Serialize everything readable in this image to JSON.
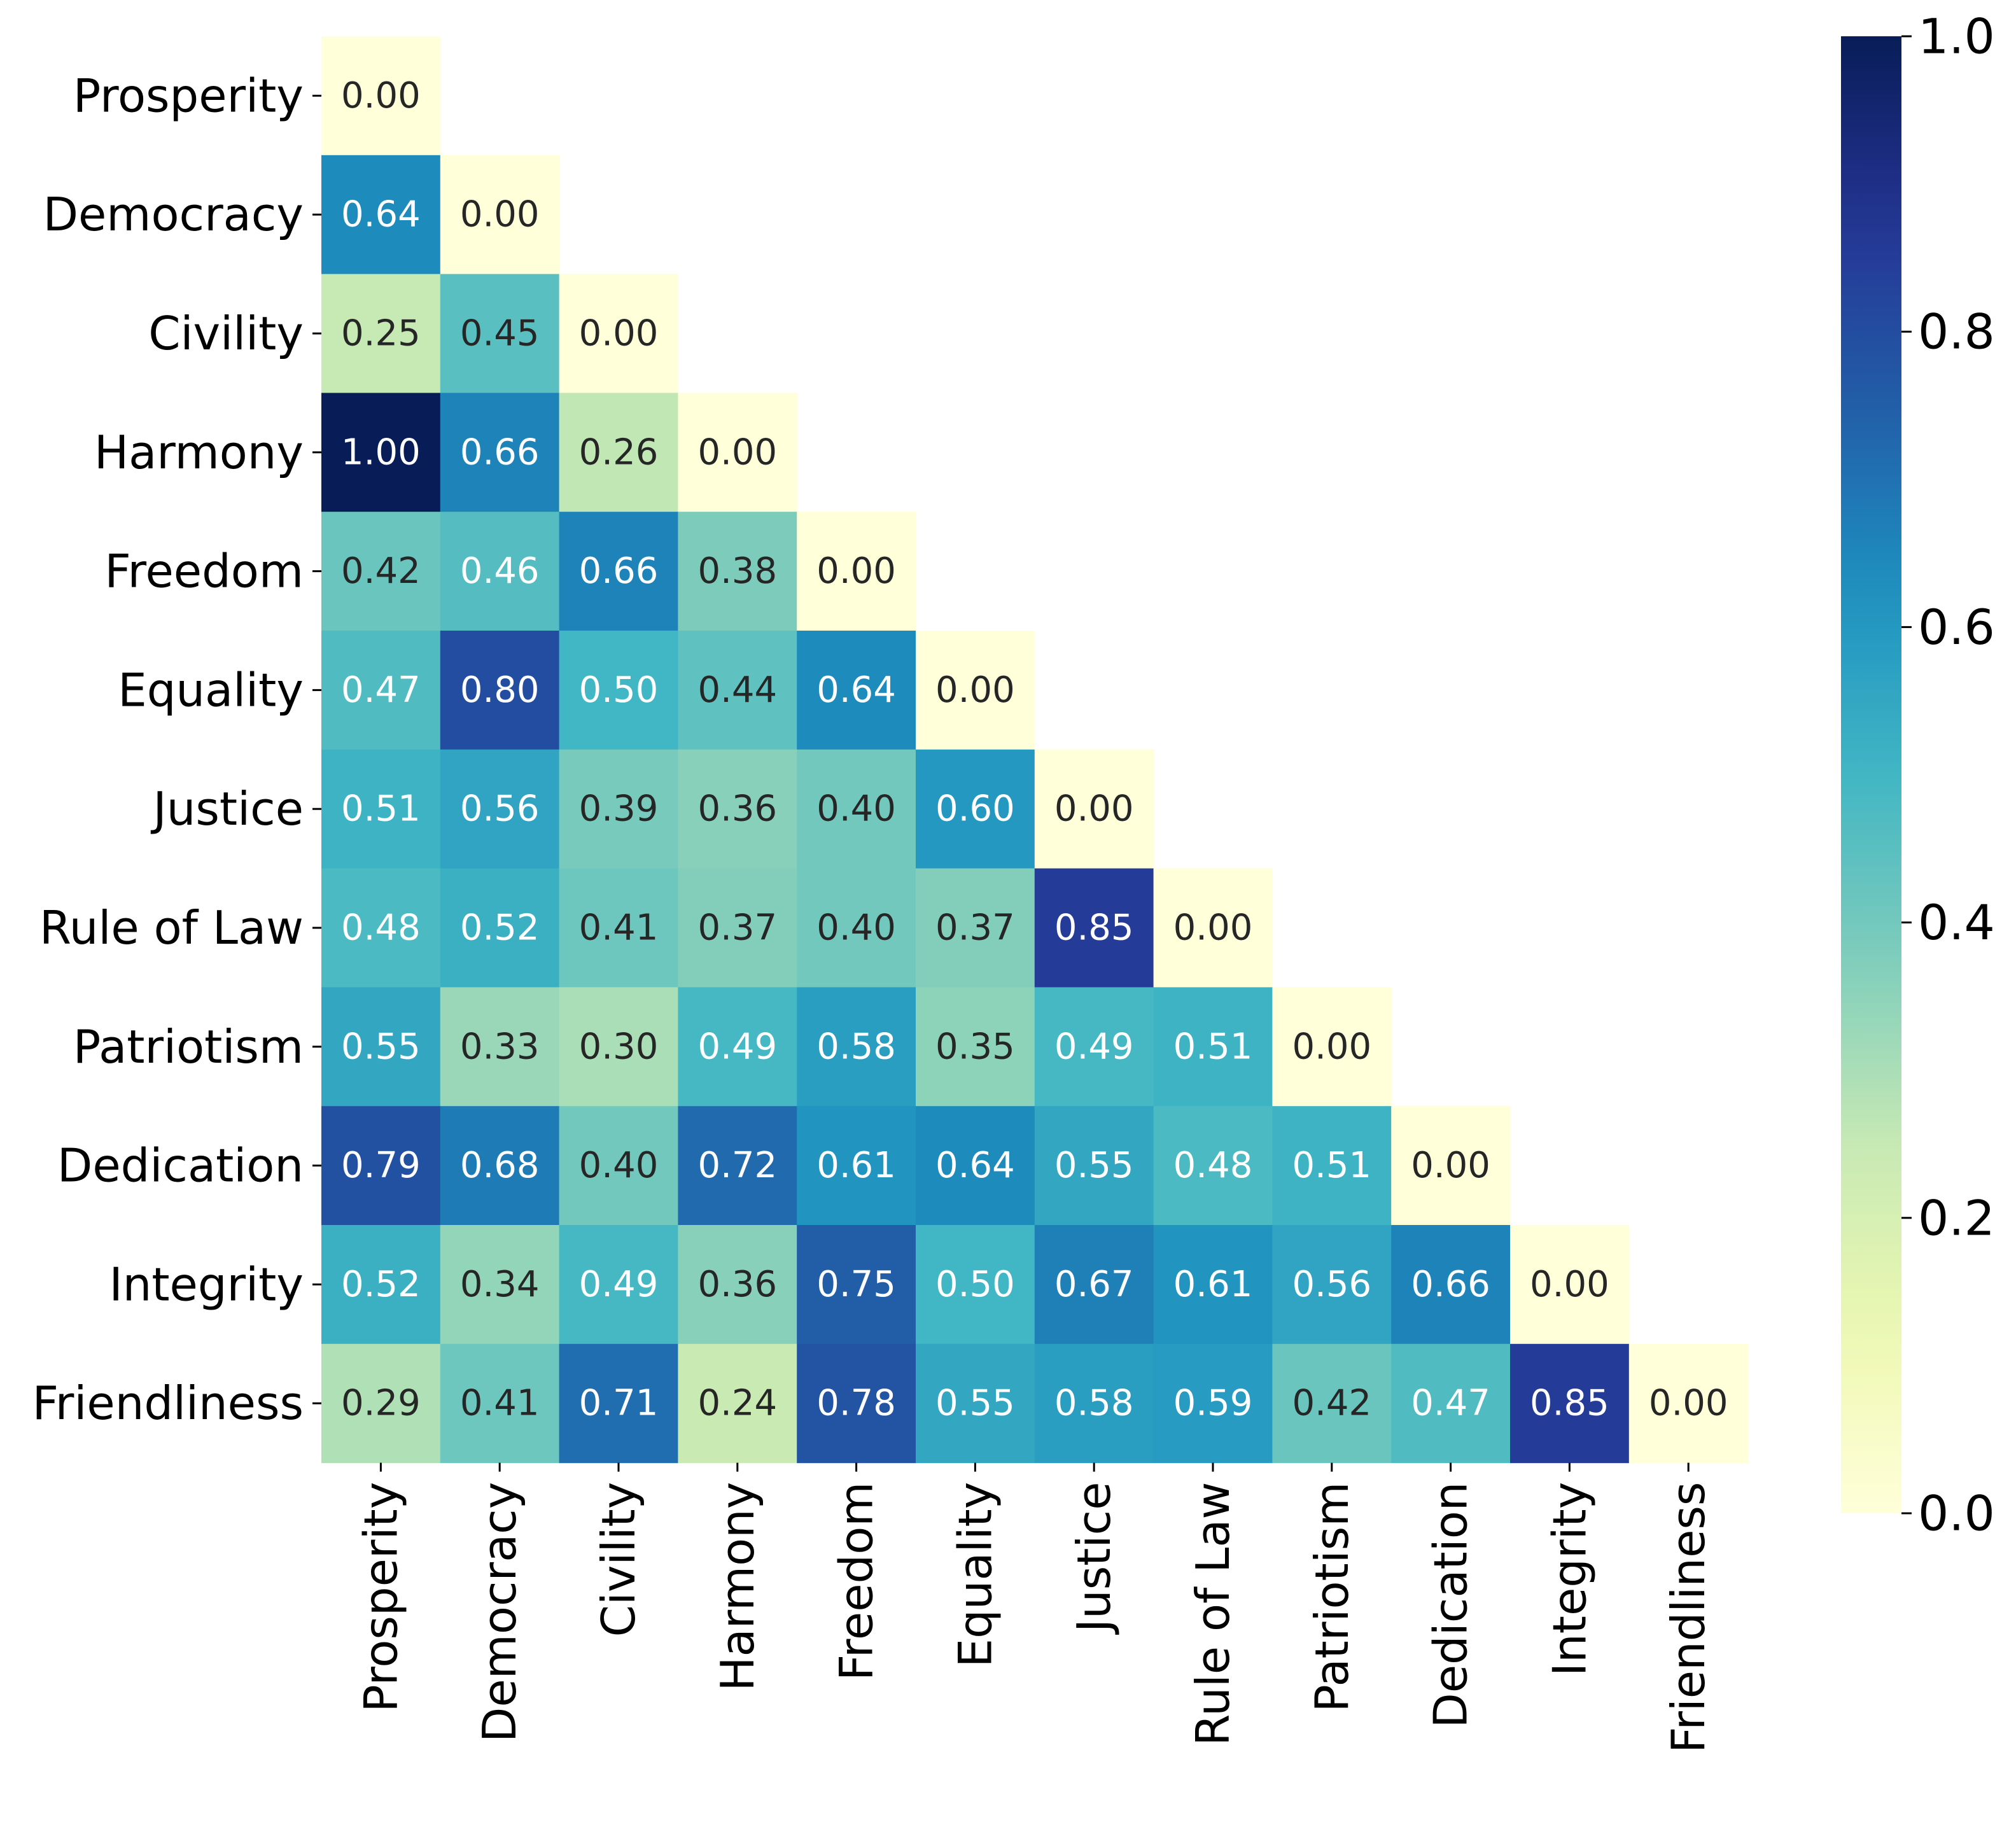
{
  "chart_data": {
    "type": "heatmap",
    "title": "",
    "xlabel": "",
    "ylabel": "",
    "layout": "lower-triangle",
    "colormap": "YlGnBu",
    "categories": [
      "Prosperity",
      "Democracy",
      "Civility",
      "Harmony",
      "Freedom",
      "Equality",
      "Justice",
      "Rule of Law",
      "Patriotism",
      "Dedication",
      "Integrity",
      "Friendliness"
    ],
    "values": [
      [
        0.0
      ],
      [
        0.64,
        0.0
      ],
      [
        0.25,
        0.45,
        0.0
      ],
      [
        1.0,
        0.66,
        0.26,
        0.0
      ],
      [
        0.42,
        0.46,
        0.66,
        0.38,
        0.0
      ],
      [
        0.47,
        0.8,
        0.5,
        0.44,
        0.64,
        0.0
      ],
      [
        0.51,
        0.56,
        0.39,
        0.36,
        0.4,
        0.6,
        0.0
      ],
      [
        0.48,
        0.52,
        0.41,
        0.37,
        0.4,
        0.37,
        0.85,
        0.0
      ],
      [
        0.55,
        0.33,
        0.3,
        0.49,
        0.58,
        0.35,
        0.49,
        0.51,
        0.0
      ],
      [
        0.79,
        0.68,
        0.4,
        0.72,
        0.61,
        0.64,
        0.55,
        0.48,
        0.51,
        0.0
      ],
      [
        0.52,
        0.34,
        0.49,
        0.36,
        0.75,
        0.5,
        0.67,
        0.61,
        0.56,
        0.66,
        0.0
      ],
      [
        0.29,
        0.41,
        0.71,
        0.24,
        0.78,
        0.55,
        0.58,
        0.59,
        0.42,
        0.47,
        0.85,
        0.0
      ]
    ],
    "colorbar": {
      "range": [
        0.0,
        1.0
      ],
      "ticks": [
        "0.0",
        "0.2",
        "0.4",
        "0.6",
        "0.8",
        "1.0"
      ]
    }
  }
}
